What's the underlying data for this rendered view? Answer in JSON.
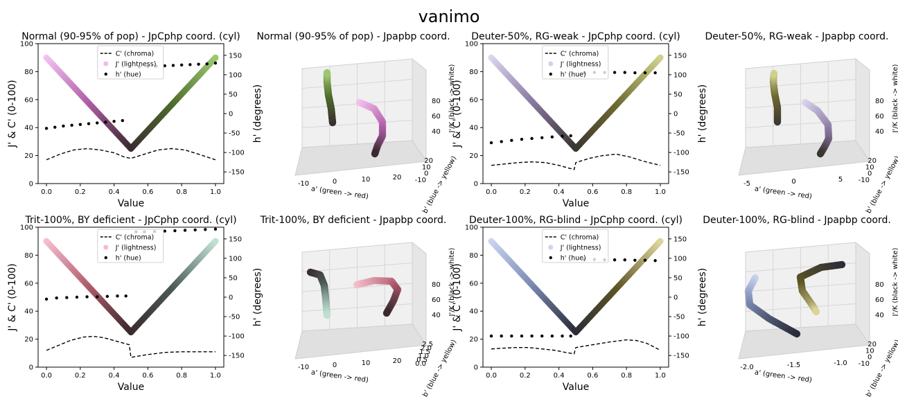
{
  "figure_title": "vanimo",
  "chart_data": [
    {
      "type": "line",
      "panel": "cyl",
      "title": "Normal (90-95% of pop) - JpCphp coord. (cyl)",
      "xlabel": "Value",
      "ylabel_left": "J' & C' (0-100)",
      "ylabel_right": "h' (degrees)",
      "xlim": [
        0,
        1
      ],
      "ylim_left": [
        0,
        100
      ],
      "ylim_right": [
        -180,
        180
      ],
      "xticks": [
        "0.0",
        "0.2",
        "0.4",
        "0.6",
        "0.8",
        "1.0"
      ],
      "yticks_left": [
        "0",
        "20",
        "40",
        "60",
        "80",
        "100"
      ],
      "yticks_right": [
        "-150",
        "-100",
        "-50",
        "0",
        "50",
        "100",
        "150"
      ],
      "legend": [
        "C' (chroma)",
        "J' (lightness)",
        "h' (hue)"
      ],
      "legend_colors": [
        "#000000",
        "#f2b8f0",
        "#000000"
      ],
      "gradient": [
        "#f4c3f2",
        "#b15ea8",
        "#3a2a30",
        "#4d6b2c",
        "#9cc770"
      ],
      "J": [
        90,
        25,
        90
      ],
      "C": [
        17,
        21,
        24,
        25,
        24,
        22,
        19,
        18,
        21,
        24,
        25,
        24,
        21,
        17
      ],
      "C_x": [
        0,
        0.08,
        0.16,
        0.24,
        0.32,
        0.4,
        0.46,
        0.5,
        0.58,
        0.66,
        0.74,
        0.82,
        0.9,
        1.0
      ],
      "hue_x": [
        0,
        0.05,
        0.1,
        0.15,
        0.2,
        0.25,
        0.3,
        0.35,
        0.4,
        0.45,
        0.55,
        0.6,
        0.65,
        0.7,
        0.75,
        0.8,
        0.85,
        0.9,
        0.95,
        1.0
      ],
      "hue": [
        -38,
        -35,
        -32,
        -30,
        -28,
        -26,
        -24,
        -22,
        -20,
        -18,
        120,
        121,
        122,
        123,
        124,
        125,
        126,
        127,
        128,
        130
      ]
    },
    {
      "type": "line3d",
      "panel": "3d",
      "title": "Normal (90-95% of pop) - Jpapbp coord.",
      "xlabel": "a' (green -> red)",
      "ylabel": "b' (blue -> yellow)",
      "zlabel": "J'/K (black -> white)",
      "xticks": [
        "-10",
        "0",
        "10",
        "20"
      ],
      "yticks": [
        "20",
        "10",
        "0",
        "-10"
      ],
      "zticks": [
        "40",
        "60",
        "80"
      ],
      "gradient": [
        "#f4c3f2",
        "#b15ea8",
        "#3a2a30",
        "#4d6b2c",
        "#9cc770"
      ],
      "curve_a": [
        [
          519,
          148
        ],
        [
          540,
          157
        ],
        [
          552,
          176
        ],
        [
          552,
          196
        ],
        [
          545,
          210
        ],
        [
          541,
          222
        ]
      ],
      "curve_b": [
        [
          480,
          177
        ],
        [
          478,
          157
        ],
        [
          474,
          137
        ],
        [
          472,
          118
        ],
        [
          472,
          105
        ]
      ]
    },
    {
      "type": "line",
      "panel": "cyl",
      "title": "Deuter-50%, RG-weak - JpCphp coord. (cyl)",
      "xlabel": "Value",
      "ylabel_left": "J' & C' (0-100)",
      "ylabel_right": "h' (degrees)",
      "xlim": [
        0,
        1
      ],
      "ylim_left": [
        0,
        100
      ],
      "ylim_right": [
        -180,
        180
      ],
      "xticks": [
        "0.0",
        "0.2",
        "0.4",
        "0.6",
        "0.8",
        "1.0"
      ],
      "yticks_left": [
        "0",
        "20",
        "40",
        "60",
        "80",
        "100"
      ],
      "yticks_right": [
        "-150",
        "-100",
        "-50",
        "0",
        "50",
        "100",
        "150"
      ],
      "legend": [
        "C' (chroma)",
        "J' (lightness)",
        "h' (hue)"
      ],
      "legend_colors": [
        "#000000",
        "#d4d0ee",
        "#000000"
      ],
      "gradient": [
        "#dcd6ef",
        "#8a78a0",
        "#3a3530",
        "#6f6a30",
        "#cfd08c"
      ],
      "J": [
        90,
        25,
        90
      ],
      "C": [
        13,
        14,
        15,
        15.5,
        15,
        13,
        11,
        10,
        15,
        18,
        20,
        21,
        19,
        16,
        13
      ],
      "C_x": [
        0,
        0.08,
        0.16,
        0.24,
        0.32,
        0.4,
        0.46,
        0.49,
        0.5,
        0.58,
        0.66,
        0.74,
        0.82,
        0.9,
        1.0
      ],
      "hue_x": [
        0,
        0.06,
        0.12,
        0.18,
        0.24,
        0.3,
        0.36,
        0.42,
        0.47,
        0.55,
        0.61,
        0.67,
        0.73,
        0.79,
        0.85,
        0.91,
        0.97
      ],
      "hue": [
        -75,
        -72,
        -69,
        -66,
        -64,
        -62,
        -60,
        -58,
        -57,
        105,
        106,
        106,
        106,
        106,
        105,
        105,
        105
      ]
    },
    {
      "type": "line3d",
      "panel": "3d",
      "title": "Deuter-50%, RG-weak - Jpapbp coord.",
      "xlabel": "a' (green -> red)",
      "ylabel": "b' (blue -> yellow)",
      "zlabel": "J'/K (black -> white)",
      "xticks": [
        "-5",
        "0",
        "5"
      ],
      "yticks": [
        "20",
        "10",
        "0",
        "-10"
      ],
      "zticks": [
        "40",
        "60",
        "80"
      ],
      "gradient": [
        "#dcd6ef",
        "#8a78a0",
        "#3a3530",
        "#6f6a30",
        "#cfd08c"
      ],
      "curve_a": [
        [
          1162,
          148
        ],
        [
          1180,
          160
        ],
        [
          1195,
          180
        ],
        [
          1196,
          200
        ],
        [
          1190,
          212
        ],
        [
          1184,
          222
        ]
      ],
      "curve_b": [
        [
          1122,
          176
        ],
        [
          1122,
          155
        ],
        [
          1118,
          135
        ],
        [
          1116,
          118
        ],
        [
          1117,
          106
        ]
      ]
    },
    {
      "type": "line",
      "panel": "cyl",
      "title": "Trit-100%, BY deficient - JpCphp coord. (cyl)",
      "xlabel": "Value",
      "ylabel_left": "J' & C' (0-100)",
      "ylabel_right": "h' (degrees)",
      "xlim": [
        0,
        1
      ],
      "ylim_left": [
        0,
        100
      ],
      "ylim_right": [
        -180,
        180
      ],
      "xticks": [
        "0.0",
        "0.2",
        "0.4",
        "0.6",
        "0.8",
        "1.0"
      ],
      "yticks_left": [
        "0",
        "20",
        "40",
        "60",
        "80",
        "100"
      ],
      "yticks_right": [
        "-150",
        "-100",
        "-50",
        "0",
        "50",
        "100",
        "150"
      ],
      "legend": [
        "C' (chroma)",
        "J' (lightness)",
        "h' (hue)"
      ],
      "legend_colors": [
        "#000000",
        "#f5bccc",
        "#000000"
      ],
      "gradient": [
        "#f6c0ce",
        "#b25c70",
        "#3a2a2c",
        "#4a5a55",
        "#bfe0d0"
      ],
      "J": [
        90,
        25,
        90
      ],
      "C": [
        12,
        15,
        19,
        21.5,
        22,
        21,
        19,
        17,
        16,
        7,
        9,
        10.5,
        11,
        11,
        11,
        11
      ],
      "C_x": [
        0,
        0.06,
        0.14,
        0.22,
        0.28,
        0.34,
        0.4,
        0.46,
        0.49,
        0.5,
        0.6,
        0.7,
        0.8,
        0.88,
        0.94,
        1.0
      ],
      "hue_x": [
        0,
        0.06,
        0.12,
        0.18,
        0.24,
        0.3,
        0.36,
        0.42,
        0.47,
        0.53,
        0.58,
        0.64,
        0.7,
        0.76,
        0.82,
        0.88,
        0.94,
        1.0
      ],
      "hue": [
        -5,
        -2,
        -1,
        0,
        1,
        1,
        2,
        3,
        3,
        168,
        168,
        169,
        170,
        171,
        172,
        173,
        174,
        175
      ]
    },
    {
      "type": "line3d",
      "panel": "3d",
      "title": "Trit-100%, BY deficient - Jpapbp coord.",
      "xlabel": "a' (green -> red)",
      "ylabel": "b' (blue -> yellow)",
      "zlabel": "J'/K (black -> white)",
      "xticks": [
        "-10",
        "0",
        "10",
        "20"
      ],
      "yticks": [
        "2.5",
        "2.0",
        "1.5",
        "1.0",
        "0.5",
        "0.0"
      ],
      "zticks": [
        "40",
        "60",
        "80"
      ],
      "gradient": [
        "#f6c0ce",
        "#b25c70",
        "#3a2a2c",
        "#4a5a55",
        "#bfe0d0"
      ],
      "curve_a": [
        [
          515,
          411
        ],
        [
          540,
          405
        ],
        [
          565,
          406
        ],
        [
          574,
          418
        ],
        [
          568,
          434
        ],
        [
          558,
          452
        ]
      ],
      "curve_b": [
        [
          448,
          393
        ],
        [
          462,
          397
        ],
        [
          468,
          412
        ],
        [
          470,
          430
        ],
        [
          472,
          455
        ]
      ]
    },
    {
      "type": "line",
      "panel": "cyl",
      "title": "Deuter-100%, RG-blind - JpCphp coord. (cyl)",
      "xlabel": "Value",
      "ylabel_left": "J' & C' (0-100)",
      "ylabel_right": "h' (degrees)",
      "xlim": [
        0,
        1
      ],
      "ylim_left": [
        0,
        100
      ],
      "ylim_right": [
        -180,
        180
      ],
      "xticks": [
        "0.0",
        "0.2",
        "0.4",
        "0.6",
        "0.8",
        "1.0"
      ],
      "yticks_left": [
        "0",
        "20",
        "40",
        "60",
        "80",
        "100"
      ],
      "yticks_right": [
        "-150",
        "-100",
        "-50",
        "0",
        "50",
        "100",
        "150"
      ],
      "legend": [
        "C' (chroma)",
        "J' (lightness)",
        "h' (hue)"
      ],
      "legend_colors": [
        "#000000",
        "#ccd4f0",
        "#000000"
      ],
      "gradient": [
        "#ccd6f2",
        "#7888b0",
        "#2a2c38",
        "#5e5424",
        "#dcd49a"
      ],
      "J": [
        90,
        25,
        90
      ],
      "C": [
        13,
        13.5,
        14,
        14,
        13,
        12,
        10.5,
        9.5,
        14,
        16,
        18,
        19.5,
        19,
        17,
        14,
        12
      ],
      "C_x": [
        0,
        0.06,
        0.14,
        0.22,
        0.3,
        0.38,
        0.44,
        0.49,
        0.5,
        0.6,
        0.7,
        0.8,
        0.86,
        0.92,
        0.97,
        1.0
      ],
      "hue_x": [
        0,
        0.06,
        0.12,
        0.18,
        0.24,
        0.3,
        0.36,
        0.42,
        0.47,
        0.55,
        0.61,
        0.67,
        0.73,
        0.79,
        0.85,
        0.91,
        0.97
      ],
      "hue": [
        -100,
        -100,
        -100,
        -100,
        -100,
        -100,
        -100,
        -100,
        -100,
        97,
        97,
        96,
        96,
        96,
        95,
        95,
        94
      ]
    },
    {
      "type": "line3d",
      "panel": "3d",
      "title": "Deuter-100%, RG-blind - Jpapbp coord.",
      "xlabel": "a' (green -> red)",
      "ylabel": "b' (blue -> yellow)",
      "zlabel": "J'/K (black -> white)",
      "xticks": [
        "-2.0",
        "-1.5",
        "-1.0"
      ],
      "yticks": [
        "20",
        "10",
        "0",
        "-10"
      ],
      "zticks": [
        "40",
        "60",
        "80"
      ],
      "gradient": [
        "#ccd6f2",
        "#7888b0",
        "#2a2c38",
        "#5e5424",
        "#dcd49a"
      ],
      "curve_a": [
        [
          1090,
          401
        ],
        [
          1080,
          420
        ],
        [
          1082,
          440
        ],
        [
          1110,
          460
        ],
        [
          1150,
          482
        ]
      ],
      "curve_b": [
        [
          1215,
          382
        ],
        [
          1185,
          386
        ],
        [
          1155,
          400
        ],
        [
          1158,
          420
        ],
        [
          1172,
          440
        ],
        [
          1178,
          450
        ]
      ]
    }
  ]
}
